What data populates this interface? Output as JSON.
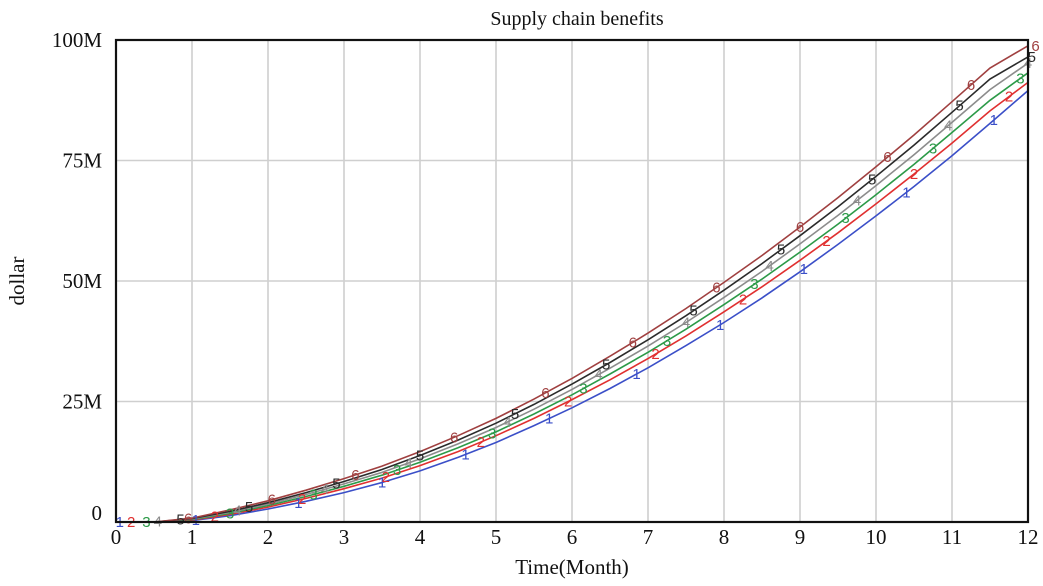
{
  "chart_data": {
    "type": "line",
    "title": "Supply chain benefits",
    "xlabel": "Time(Month)",
    "ylabel": "dollar",
    "xlim": [
      0,
      12
    ],
    "ylim": [
      0,
      100000000
    ],
    "x_ticks": [
      0,
      1,
      2,
      3,
      4,
      5,
      6,
      7,
      8,
      9,
      10,
      11,
      12
    ],
    "x_tick_labels": [
      "0",
      "1",
      "2",
      "3",
      "4",
      "5",
      "6",
      "7",
      "8",
      "9",
      "10",
      "11",
      "12"
    ],
    "y_ticks": [
      0,
      25000000,
      50000000,
      75000000,
      100000000
    ],
    "y_tick_labels": [
      "0",
      "25M",
      "50M",
      "75M",
      "100M"
    ],
    "grid": true,
    "legend": "none",
    "x": [
      0,
      0.5,
      1,
      1.5,
      2,
      2.5,
      3,
      3.5,
      4,
      4.5,
      5,
      5.5,
      6,
      6.5,
      7,
      7.5,
      8,
      8.5,
      9,
      9.5,
      10,
      10.5,
      11,
      11.5,
      12
    ],
    "series": [
      {
        "name": "1",
        "color": "#3b4fc8",
        "values": [
          0,
          0,
          300000,
          1300000,
          2700000,
          4300000,
          6100000,
          8200000,
          10600000,
          13400000,
          16500000,
          20000000,
          23700000,
          27700000,
          32000000,
          36600000,
          41400000,
          46500000,
          51900000,
          57600000,
          63500000,
          69600000,
          76000000,
          82700000,
          89500000
        ]
      },
      {
        "name": "2",
        "color": "#e03030",
        "values": [
          0,
          0,
          400000,
          1600000,
          3100000,
          4900000,
          6900000,
          9100000,
          11700000,
          14600000,
          17900000,
          21500000,
          25400000,
          29500000,
          33900000,
          38600000,
          43600000,
          48800000,
          54300000,
          60000000,
          66000000,
          72200000,
          78600000,
          85300000,
          91200000
        ]
      },
      {
        "name": "3",
        "color": "#2c9a48",
        "values": [
          0,
          0,
          500000,
          1800000,
          3400000,
          5300000,
          7400000,
          9700000,
          12400000,
          15400000,
          18700000,
          22400000,
          26400000,
          30700000,
          35200000,
          40000000,
          45100000,
          50400000,
          56000000,
          61800000,
          67900000,
          74200000,
          80800000,
          87500000,
          93200000
        ]
      },
      {
        "name": "4",
        "color": "#8c8c8c",
        "values": [
          0,
          0,
          600000,
          2000000,
          3700000,
          5700000,
          7900000,
          10300000,
          13100000,
          16200000,
          19600000,
          23400000,
          27500000,
          31900000,
          36500000,
          41400000,
          46600000,
          52000000,
          57700000,
          63600000,
          69800000,
          76200000,
          82900000,
          89700000,
          95200000
        ]
      },
      {
        "name": "5",
        "color": "#2b2b2b",
        "values": [
          0,
          0,
          700000,
          2200000,
          4000000,
          6100000,
          8400000,
          10900000,
          13800000,
          17000000,
          20500000,
          24400000,
          28600000,
          33100000,
          37800000,
          42800000,
          48100000,
          53600000,
          59400000,
          65400000,
          71700000,
          78200000,
          85000000,
          91900000,
          96500000
        ]
      },
      {
        "name": "6",
        "color": "#a04040",
        "values": [
          0,
          0,
          800000,
          2500000,
          4400000,
          6600000,
          9000000,
          11600000,
          14600000,
          17900000,
          21500000,
          25500000,
          29800000,
          34400000,
          39200000,
          44300000,
          49700000,
          55300000,
          61200000,
          67300000,
          73700000,
          80300000,
          87200000,
          94200000,
          98800000
        ]
      }
    ],
    "marker_positions": [
      [
        0.05,
        1.05,
        2.4,
        3.5,
        4.6,
        5.7,
        6.85,
        7.95,
        9.05,
        10.4,
        11.55
      ],
      [
        0.2,
        1.3,
        2.45,
        3.55,
        4.8,
        5.95,
        7.1,
        8.25,
        9.35,
        10.5,
        11.75
      ],
      [
        0.4,
        1.5,
        2.6,
        3.7,
        4.95,
        6.15,
        7.25,
        8.4,
        9.6,
        10.75,
        11.9
      ],
      [
        0.55,
        1.6,
        2.75,
        3.85,
        5.15,
        6.35,
        7.5,
        8.6,
        9.75,
        10.95,
        12.0
      ],
      [
        0.85,
        1.75,
        2.9,
        4.0,
        5.25,
        6.45,
        7.6,
        8.75,
        9.95,
        11.1,
        12.05
      ],
      [
        0.95,
        2.05,
        3.15,
        4.45,
        5.65,
        6.8,
        7.9,
        9.0,
        10.15,
        11.25,
        12.1
      ]
    ]
  }
}
